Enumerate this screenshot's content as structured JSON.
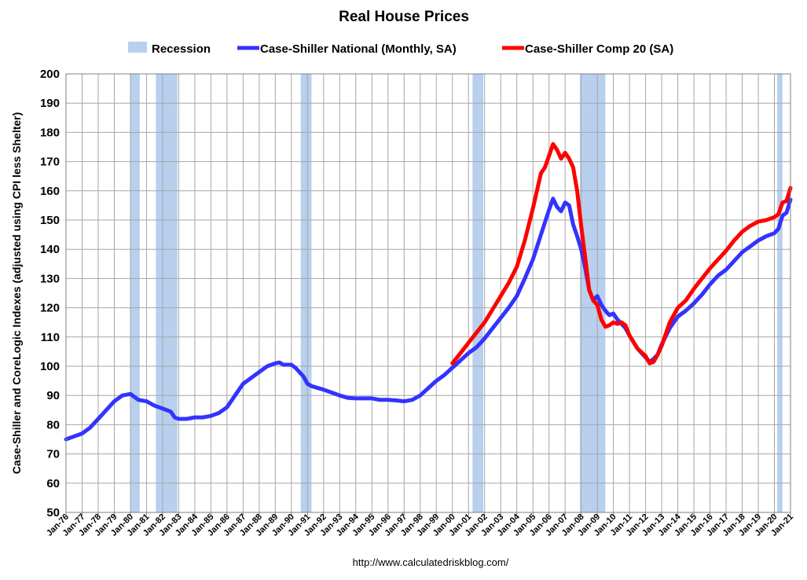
{
  "chart_data": {
    "type": "line",
    "title": "Real House Prices",
    "ylabel": "Case-Shiller and CoreLogic Indexes (adjusted using CPI less Shelter)",
    "xlabel": "",
    "ylim": [
      50,
      200
    ],
    "yticks": [
      50,
      60,
      70,
      80,
      90,
      100,
      110,
      120,
      130,
      140,
      150,
      160,
      170,
      180,
      190,
      200
    ],
    "xlim": [
      1976.0,
      2021.0
    ],
    "xtick_labels": [
      "Jan-76",
      "Jan-77",
      "Jan-78",
      "Jan-79",
      "Jan-80",
      "Jan-81",
      "Jan-82",
      "Jan-83",
      "Jan-84",
      "Jan-85",
      "Jan-86",
      "Jan-87",
      "Jan-88",
      "Jan-89",
      "Jan-90",
      "Jan-91",
      "Jan-92",
      "Jan-93",
      "Jan-94",
      "Jan-95",
      "Jan-96",
      "Jan-97",
      "Jan-98",
      "Jan-99",
      "Jan-00",
      "Jan-01",
      "Jan-02",
      "Jan-03",
      "Jan-04",
      "Jan-05",
      "Jan-06",
      "Jan-07",
      "Jan-08",
      "Jan-09",
      "Jan-10",
      "Jan-11",
      "Jan-12",
      "Jan-13",
      "Jan-14",
      "Jan-15",
      "Jan-16",
      "Jan-17",
      "Jan-18",
      "Jan-19",
      "Jan-20",
      "Jan-21"
    ],
    "grid": true,
    "legend_position": "top",
    "recessions": [
      [
        1980.0,
        1980.58
      ],
      [
        1981.58,
        1982.92
      ],
      [
        1990.58,
        1991.25
      ],
      [
        2001.25,
        2001.92
      ],
      [
        2007.92,
        2009.5
      ],
      [
        2020.17,
        2020.5
      ]
    ],
    "legend": [
      {
        "name": "Recession",
        "color": "#b8d0ee",
        "kind": "box"
      },
      {
        "name": "Case-Shiller National (Monthly, SA)",
        "color": "#3333ff",
        "kind": "line"
      },
      {
        "name": "Case-Shiller Comp 20  (SA)",
        "color": "#ff0000",
        "kind": "line"
      }
    ],
    "series": [
      {
        "name": "Case-Shiller National (Monthly, SA)",
        "color": "#3333ff",
        "x": [
          1976.0,
          1976.5,
          1977.0,
          1977.5,
          1978.0,
          1978.5,
          1979.0,
          1979.5,
          1980.0,
          1980.25,
          1980.5,
          1981.0,
          1981.5,
          1982.0,
          1982.5,
          1982.75,
          1983.0,
          1983.5,
          1984.0,
          1984.5,
          1985.0,
          1985.5,
          1986.0,
          1986.5,
          1987.0,
          1987.5,
          1988.0,
          1988.5,
          1989.0,
          1989.25,
          1989.5,
          1990.0,
          1990.25,
          1990.5,
          1990.75,
          1991.0,
          1991.25,
          1991.5,
          1992.0,
          1992.5,
          1993.0,
          1993.5,
          1994.0,
          1994.5,
          1995.0,
          1995.5,
          1996.0,
          1996.5,
          1997.0,
          1997.5,
          1998.0,
          1998.5,
          1999.0,
          1999.5,
          2000.0,
          2000.5,
          2001.0,
          2001.5,
          2002.0,
          2002.5,
          2003.0,
          2003.5,
          2004.0,
          2004.5,
          2005.0,
          2005.5,
          2006.0,
          2006.25,
          2006.5,
          2006.75,
          2007.0,
          2007.25,
          2007.5,
          2007.75,
          2008.0,
          2008.25,
          2008.5,
          2008.75,
          2009.0,
          2009.25,
          2009.5,
          2009.75,
          2010.0,
          2010.25,
          2010.5,
          2010.75,
          2011.0,
          2011.5,
          2012.0,
          2012.25,
          2012.5,
          2012.75,
          2013.0,
          2013.5,
          2014.0,
          2014.5,
          2015.0,
          2015.5,
          2016.0,
          2016.5,
          2017.0,
          2017.5,
          2018.0,
          2018.5,
          2019.0,
          2019.5,
          2020.0,
          2020.25,
          2020.5,
          2020.75,
          2021.0
        ],
        "values": [
          75,
          76,
          77,
          79,
          82,
          85,
          88,
          90,
          90.5,
          89.5,
          88.5,
          88,
          86.5,
          85.5,
          84.5,
          82.5,
          82,
          82,
          82.5,
          82.5,
          83,
          84,
          86,
          90,
          94,
          96,
          98,
          100,
          101,
          101.3,
          100.5,
          100.5,
          99.5,
          98,
          96.5,
          94,
          93.2,
          92.8,
          92,
          91,
          90,
          89.2,
          89,
          89,
          89,
          88.5,
          88.5,
          88.3,
          88,
          88.5,
          90,
          92.5,
          95,
          97,
          99.5,
          102,
          104.5,
          106.5,
          109.5,
          113,
          116.5,
          120,
          124,
          130,
          136.5,
          145,
          153.5,
          157.3,
          154.5,
          153,
          156,
          155,
          148.5,
          144.5,
          140,
          133.5,
          126,
          122.5,
          124,
          121,
          119,
          117.5,
          118,
          116,
          114.5,
          113,
          110.5,
          106,
          103,
          101.5,
          102.5,
          104,
          107.5,
          113,
          117,
          119,
          121.5,
          124.5,
          128,
          131,
          133,
          136,
          139,
          141,
          143,
          144.5,
          145.5,
          147,
          151.5,
          152.5,
          157
        ]
      },
      {
        "name": "Case-Shiller Comp 20  (SA)",
        "color": "#ff0000",
        "x": [
          2000.0,
          2000.5,
          2001.0,
          2001.5,
          2002.0,
          2002.5,
          2003.0,
          2003.5,
          2004.0,
          2004.5,
          2005.0,
          2005.25,
          2005.5,
          2005.75,
          2006.0,
          2006.25,
          2006.5,
          2006.75,
          2007.0,
          2007.25,
          2007.5,
          2007.75,
          2008.0,
          2008.25,
          2008.5,
          2008.75,
          2009.0,
          2009.25,
          2009.5,
          2009.75,
          2010.0,
          2010.25,
          2010.5,
          2010.75,
          2011.0,
          2011.5,
          2012.0,
          2012.25,
          2012.5,
          2012.75,
          2013.0,
          2013.5,
          2014.0,
          2014.5,
          2015.0,
          2015.5,
          2016.0,
          2016.5,
          2017.0,
          2017.5,
          2018.0,
          2018.5,
          2019.0,
          2019.5,
          2020.0,
          2020.25,
          2020.5,
          2020.75,
          2021.0
        ],
        "values": [
          101,
          104.5,
          108,
          111.5,
          115,
          119.5,
          124,
          128.5,
          134,
          143,
          154,
          160,
          166,
          168,
          172,
          176,
          174,
          171,
          173,
          171,
          168,
          160,
          148,
          137,
          126,
          122.5,
          121,
          116,
          113.5,
          114,
          115,
          114.5,
          115,
          114,
          110.5,
          106,
          103.5,
          101,
          101.5,
          104,
          107,
          115,
          120,
          122.5,
          126.5,
          130,
          133.5,
          136.5,
          139.5,
          143,
          146,
          148,
          149.5,
          150,
          151,
          152,
          156,
          156.5,
          161
        ]
      }
    ]
  },
  "footer": {
    "url": "http://www.calculatedriskblog.com/"
  }
}
